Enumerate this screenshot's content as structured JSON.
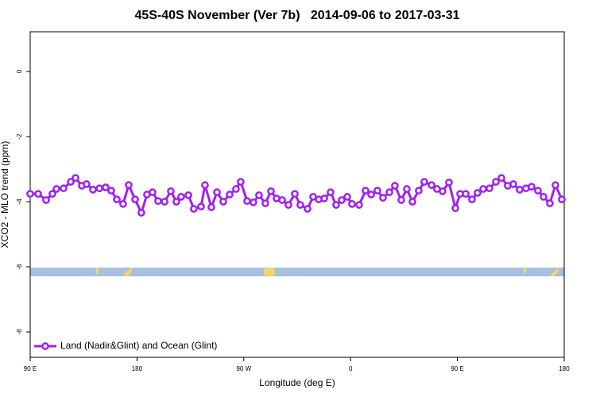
{
  "chart_data": {
    "type": "line",
    "title": "45S-40S November (Ver 7b)   2014-09-06 to 2017-03-31",
    "x_label": "Longitude (deg E)",
    "y_label": "XCO2 - MLO trend (ppm)",
    "x": [
      90,
      96.7,
      103.4,
      108.7,
      112.1,
      118.1,
      124.2,
      128.2,
      133.5,
      137.5,
      142.9,
      148.3,
      153.6,
      158.3,
      163,
      168.3,
      173,
      178.4,
      183.7,
      188.4,
      193.1,
      197.8,
      203.2,
      208.5,
      213.2,
      217.2,
      223.3,
      227.9,
      234,
      237.3,
      242.7,
      247.4,
      252.7,
      258.1,
      263.4,
      267.4,
      272.8,
      278.1,
      282.8,
      288.2,
      292.9,
      297.6,
      302.3,
      307.6,
      313,
      317.6,
      323.7,
      328.4,
      333.1,
      337.8,
      343.1,
      347.8,
      352.5,
      357.2,
      361.2,
      367.2,
      372.6,
      377.3,
      382.6,
      387.3,
      392.7,
      397.3,
      402.7,
      407.4,
      412.1,
      417.4,
      422.1,
      428.2,
      432.8,
      437.5,
      442.9,
      448.3,
      452.3,
      457,
      462.3,
      467,
      471.7,
      477,
      482.4,
      487.1,
      492.4,
      497.1,
      502.5,
      507.8,
      512.5,
      517.9,
      522.6,
      527.9,
      532.6,
      538
    ],
    "series": [
      {
        "name": "Land (Nadir&Glint) and Ocean (Glint)",
        "color": "#a020f0",
        "values": [
          -3.76,
          -3.76,
          -3.95,
          -3.76,
          -3.61,
          -3.59,
          -3.39,
          -3.27,
          -3.51,
          -3.46,
          -3.63,
          -3.59,
          -3.56,
          -3.66,
          -3.93,
          -4.07,
          -3.49,
          -3.93,
          -4.34,
          -3.78,
          -3.71,
          -3.98,
          -4.0,
          -3.68,
          -4.0,
          -3.85,
          -3.8,
          -4.22,
          -4.15,
          -3.49,
          -4.17,
          -3.71,
          -4.0,
          -3.78,
          -3.61,
          -3.39,
          -3.98,
          -4.02,
          -3.8,
          -4.05,
          -3.68,
          -3.9,
          -3.95,
          -4.1,
          -3.76,
          -4.1,
          -4.22,
          -3.85,
          -3.93,
          -3.9,
          -3.71,
          -4.1,
          -3.95,
          -3.85,
          -4.07,
          -4.1,
          -3.66,
          -3.78,
          -3.66,
          -3.88,
          -3.71,
          -3.51,
          -3.95,
          -3.61,
          -4.0,
          -3.66,
          -3.39,
          -3.49,
          -3.61,
          -3.68,
          -3.41,
          -4.2,
          -3.76,
          -3.76,
          -3.93,
          -3.73,
          -3.61,
          -3.59,
          -3.39,
          -3.27,
          -3.51,
          -3.46,
          -3.63,
          -3.59,
          -3.54,
          -3.66,
          -3.85,
          -4.05,
          -3.49,
          -3.93
        ]
      }
    ],
    "xlim": [
      90,
      540
    ],
    "ylim": [
      -8.78,
      1.22
    ],
    "xticks": [
      {
        "value": 90,
        "label": "90 E"
      },
      180,
      {
        "value": 270,
        "label": "90 W"
      },
      {
        "value": 360,
        "label": "0"
      },
      {
        "value": 450,
        "label": "90 E"
      },
      {
        "value": 540,
        "label": "180"
      }
    ],
    "yticks": [
      0,
      -2,
      -4,
      -6,
      -8
    ],
    "legend": "lower left"
  }
}
